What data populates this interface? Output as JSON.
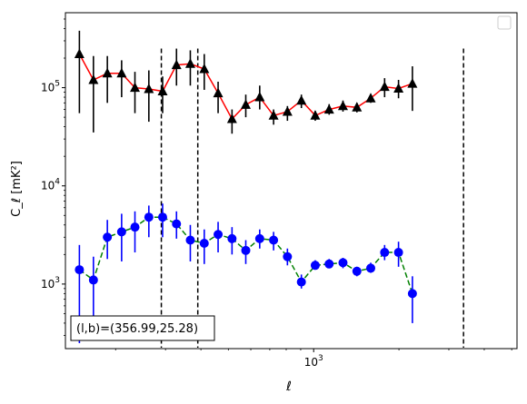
{
  "chart_data": {
    "type": "scatter",
    "title": "",
    "xlabel": "ℓ",
    "ylabel": "C_ℓ  [mK²]",
    "xscale": "log",
    "yscale": "log",
    "xlim": [
      133,
      5220
    ],
    "ylim": [
      220,
      580000
    ],
    "x_ticks": [
      {
        "value": 1000,
        "label": "10^3"
      }
    ],
    "y_ticks": [
      {
        "value": 1000,
        "label": "10^3"
      },
      {
        "value": 10000,
        "label": "10^4"
      },
      {
        "value": 100000,
        "label": "10^5"
      }
    ],
    "grid": false,
    "legend": {
      "position": "upper right",
      "entries": []
    },
    "annotation": "(l,b)=(356.99,25.28)",
    "vlines": [
      {
        "x": 290,
        "ymin": 225,
        "ymax": 250000,
        "color": "#000000",
        "style": "dashed"
      },
      {
        "x": 390,
        "ymin": 225,
        "ymax": 250000,
        "color": "#000000",
        "style": "dashed"
      },
      {
        "x": 3380,
        "ymin": 225,
        "ymax": 250000,
        "color": "#000000",
        "style": "dashed"
      }
    ],
    "series": [
      {
        "line_color": "#ff0000",
        "line_style": "solid",
        "marker": "triangle",
        "marker_color": "#000000",
        "errorbar_color": "#000000",
        "points": [
          {
            "x": 149,
            "y": 220000,
            "lo": 55000,
            "hi": 380000
          },
          {
            "x": 167,
            "y": 120000,
            "lo": 35000,
            "hi": 210000
          },
          {
            "x": 187,
            "y": 140000,
            "lo": 70000,
            "hi": 210000
          },
          {
            "x": 210,
            "y": 140000,
            "lo": 80000,
            "hi": 190000
          },
          {
            "x": 234,
            "y": 100000,
            "lo": 55000,
            "hi": 145000
          },
          {
            "x": 262,
            "y": 97000,
            "lo": 45000,
            "hi": 150000
          },
          {
            "x": 293,
            "y": 92000,
            "lo": 55000,
            "hi": 130000
          },
          {
            "x": 328,
            "y": 170000,
            "lo": 105000,
            "hi": 250000
          },
          {
            "x": 367,
            "y": 175000,
            "lo": 105000,
            "hi": 240000
          },
          {
            "x": 411,
            "y": 155000,
            "lo": 95000,
            "hi": 220000
          },
          {
            "x": 460,
            "y": 88000,
            "lo": 55000,
            "hi": 115000
          },
          {
            "x": 515,
            "y": 48000,
            "lo": 34000,
            "hi": 60000
          },
          {
            "x": 576,
            "y": 67000,
            "lo": 50000,
            "hi": 85000
          },
          {
            "x": 645,
            "y": 80000,
            "lo": 60000,
            "hi": 105000
          },
          {
            "x": 722,
            "y": 52000,
            "lo": 42000,
            "hi": 60000
          },
          {
            "x": 808,
            "y": 57000,
            "lo": 46000,
            "hi": 65000
          },
          {
            "x": 905,
            "y": 74000,
            "lo": 62000,
            "hi": 85000
          },
          {
            "x": 1013,
            "y": 52000,
            "lo": 46000,
            "hi": 58000
          },
          {
            "x": 1134,
            "y": 60000,
            "lo": 53000,
            "hi": 68000
          },
          {
            "x": 1269,
            "y": 65000,
            "lo": 57000,
            "hi": 74000
          },
          {
            "x": 1421,
            "y": 63000,
            "lo": 56000,
            "hi": 70000
          },
          {
            "x": 1590,
            "y": 78000,
            "lo": 70000,
            "hi": 86000
          },
          {
            "x": 1780,
            "y": 102000,
            "lo": 80000,
            "hi": 125000
          },
          {
            "x": 1993,
            "y": 98000,
            "lo": 78000,
            "hi": 120000
          },
          {
            "x": 2231,
            "y": 110000,
            "lo": 58000,
            "hi": 165000
          }
        ]
      },
      {
        "line_color": "#008000",
        "line_style": "dashed",
        "marker": "circle",
        "marker_color": "#0000ff",
        "errorbar_color": "#0000ff",
        "points": [
          {
            "x": 149,
            "y": 1400,
            "lo": 250,
            "hi": 2500
          },
          {
            "x": 167,
            "y": 1100,
            "lo": 300,
            "hi": 1900
          },
          {
            "x": 187,
            "y": 3000,
            "lo": 1800,
            "hi": 4500
          },
          {
            "x": 210,
            "y": 3400,
            "lo": 1700,
            "hi": 5200
          },
          {
            "x": 234,
            "y": 3800,
            "lo": 2100,
            "hi": 5500
          },
          {
            "x": 262,
            "y": 4800,
            "lo": 3000,
            "hi": 6300
          },
          {
            "x": 293,
            "y": 4800,
            "lo": 3000,
            "hi": 6600
          },
          {
            "x": 328,
            "y": 4100,
            "lo": 2900,
            "hi": 5500
          },
          {
            "x": 367,
            "y": 2800,
            "lo": 1700,
            "hi": 4000
          },
          {
            "x": 411,
            "y": 2600,
            "lo": 1600,
            "hi": 3600
          },
          {
            "x": 460,
            "y": 3200,
            "lo": 2100,
            "hi": 4300
          },
          {
            "x": 515,
            "y": 2900,
            "lo": 2000,
            "hi": 3800
          },
          {
            "x": 576,
            "y": 2200,
            "lo": 1600,
            "hi": 2800
          },
          {
            "x": 645,
            "y": 2900,
            "lo": 2300,
            "hi": 3600
          },
          {
            "x": 722,
            "y": 2800,
            "lo": 2200,
            "hi": 3400
          },
          {
            "x": 808,
            "y": 1900,
            "lo": 1550,
            "hi": 2300
          },
          {
            "x": 905,
            "y": 1050,
            "lo": 900,
            "hi": 1250
          },
          {
            "x": 1013,
            "y": 1550,
            "lo": 1400,
            "hi": 1750
          },
          {
            "x": 1134,
            "y": 1600,
            "lo": 1450,
            "hi": 1800
          },
          {
            "x": 1269,
            "y": 1650,
            "lo": 1450,
            "hi": 1850
          },
          {
            "x": 1421,
            "y": 1350,
            "lo": 1200,
            "hi": 1500
          },
          {
            "x": 1590,
            "y": 1450,
            "lo": 1300,
            "hi": 1650
          },
          {
            "x": 1780,
            "y": 2100,
            "lo": 1750,
            "hi": 2500
          },
          {
            "x": 1993,
            "y": 2100,
            "lo": 1500,
            "hi": 2700
          },
          {
            "x": 2231,
            "y": 800,
            "lo": 400,
            "hi": 1200
          }
        ]
      }
    ]
  }
}
